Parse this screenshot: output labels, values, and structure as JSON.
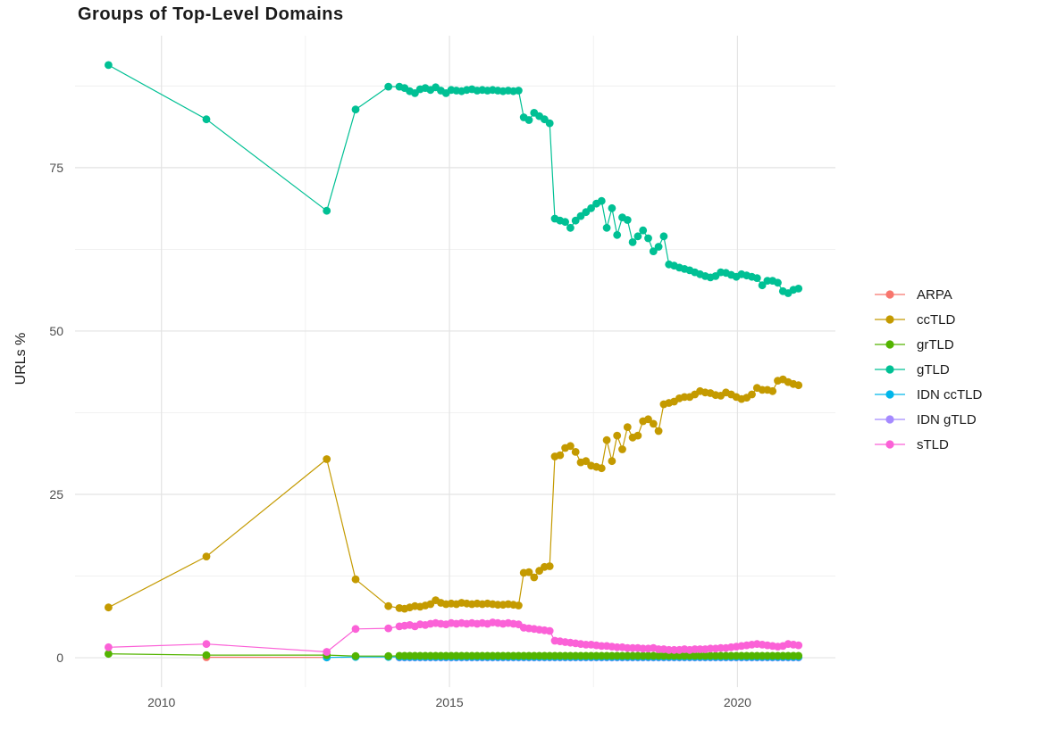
{
  "page": {
    "title": "Groups of Top-Level Domains"
  },
  "legend": {
    "position": "right",
    "items": [
      {
        "label": "ARPA",
        "color": "#F8766D"
      },
      {
        "label": "ccTLD",
        "color": "#C49A00"
      },
      {
        "label": "grTLD",
        "color": "#53B400"
      },
      {
        "label": "gTLD",
        "color": "#00C094"
      },
      {
        "label": "IDN ccTLD",
        "color": "#00B6EB"
      },
      {
        "label": "IDN gTLD",
        "color": "#A58AFF"
      },
      {
        "label": "sTLD",
        "color": "#FB61D7"
      }
    ]
  },
  "chart_data": {
    "type": "line",
    "title": "Groups of Top-Level Domains",
    "xlabel": "",
    "ylabel": "URLs %",
    "grid": true,
    "legend_position": "right",
    "xlim": [
      2008.5,
      2021.7
    ],
    "ylim": [
      -4.5,
      95.2
    ],
    "x_major_ticks": [
      2010,
      2015,
      2020
    ],
    "x_tick_labels": [
      "2010",
      "2015",
      "2020"
    ],
    "x_minor_gridlines": [
      2012.5,
      2017.5
    ],
    "y_major_ticks": [
      0,
      25,
      50,
      75
    ],
    "y_tick_labels": [
      "0",
      "25",
      "50",
      "75"
    ],
    "y_minor_gridlines": [
      12.5,
      37.5,
      62.5,
      87.5
    ],
    "colors": {
      "grid_major": "#e3e3e3",
      "grid_minor": "#efefef",
      "axis_text": "#4d4d4d"
    },
    "dense_x": {
      "start": 2014.13,
      "step": 0.09,
      "count": 78
    },
    "series": [
      {
        "name": "ARPA",
        "color": "#F8766D",
        "pre": [
          [
            2010.78,
            0.07
          ],
          [
            2012.87,
            0.05
          ]
        ]
      },
      {
        "name": "IDN gTLD",
        "color": "#A58AFF",
        "pre": [],
        "dense_const": 0.04
      },
      {
        "name": "IDN ccTLD",
        "color": "#00B6EB",
        "pre": [
          [
            2012.87,
            0.05
          ],
          [
            2013.37,
            0.12
          ],
          [
            2013.94,
            0.12
          ]
        ],
        "dense_const": 0.12
      },
      {
        "name": "grTLD",
        "color": "#53B400",
        "pre": [
          [
            2009.08,
            0.6
          ],
          [
            2010.78,
            0.4
          ],
          [
            2012.87,
            0.4
          ],
          [
            2013.37,
            0.25
          ],
          [
            2013.94,
            0.25
          ]
        ],
        "dense_const": 0.3
      },
      {
        "name": "ccTLD",
        "color": "#C49A00",
        "pre": [
          [
            2009.08,
            7.7
          ],
          [
            2010.78,
            15.5
          ],
          [
            2012.87,
            30.4
          ],
          [
            2013.37,
            12.0
          ],
          [
            2013.94,
            7.9
          ]
        ],
        "dense_y": [
          7.6,
          7.5,
          7.7,
          7.9,
          7.8,
          8.0,
          8.2,
          8.8,
          8.4,
          8.2,
          8.3,
          8.2,
          8.4,
          8.3,
          8.2,
          8.3,
          8.2,
          8.3,
          8.2,
          8.1,
          8.1,
          8.2,
          8.1,
          8.0,
          13.0,
          13.1,
          12.3,
          13.3,
          13.9,
          14.0,
          30.8,
          31.0,
          32.1,
          32.4,
          31.5,
          29.9,
          30.1,
          29.4,
          29.2,
          29.0,
          33.3,
          30.1,
          34.0,
          31.9,
          35.3,
          33.7,
          34.0,
          36.2,
          36.5,
          35.8,
          34.7,
          38.8,
          39.0,
          39.2,
          39.7,
          39.9,
          39.9,
          40.3,
          40.8,
          40.6,
          40.5,
          40.2,
          40.1,
          40.6,
          40.3,
          39.9,
          39.6,
          39.8,
          40.3,
          41.3,
          41.0,
          41.0,
          40.8,
          42.4,
          42.6,
          42.2,
          41.9,
          41.7
        ]
      },
      {
        "name": "gTLD",
        "color": "#00C094",
        "pre": [
          [
            2009.08,
            90.7
          ],
          [
            2010.78,
            82.4
          ],
          [
            2012.87,
            68.4
          ],
          [
            2013.37,
            83.9
          ],
          [
            2013.94,
            87.4
          ]
        ],
        "dense_y": [
          87.4,
          87.2,
          86.7,
          86.4,
          87.0,
          87.2,
          86.9,
          87.3,
          86.8,
          86.4,
          86.9,
          86.8,
          86.7,
          86.9,
          87.0,
          86.8,
          86.9,
          86.8,
          86.9,
          86.8,
          86.7,
          86.8,
          86.7,
          86.8,
          82.7,
          82.3,
          83.4,
          82.9,
          82.4,
          81.8,
          67.2,
          66.9,
          66.7,
          65.8,
          66.9,
          67.6,
          68.2,
          68.8,
          69.5,
          69.9,
          65.8,
          68.8,
          64.7,
          67.4,
          67.0,
          63.6,
          64.5,
          65.4,
          64.2,
          62.2,
          62.9,
          64.5,
          60.2,
          60.0,
          59.7,
          59.5,
          59.3,
          59.0,
          58.7,
          58.4,
          58.2,
          58.4,
          59.0,
          58.9,
          58.6,
          58.3,
          58.7,
          58.5,
          58.3,
          58.1,
          57.0,
          57.7,
          57.7,
          57.4,
          56.1,
          55.8,
          56.3,
          56.5
        ]
      },
      {
        "name": "sTLD",
        "color": "#FB61D7",
        "pre": [
          [
            2009.08,
            1.6
          ],
          [
            2010.78,
            2.1
          ],
          [
            2012.87,
            0.9
          ],
          [
            2013.37,
            4.4
          ],
          [
            2013.94,
            4.5
          ]
        ],
        "dense_y": [
          4.8,
          4.9,
          5.0,
          4.8,
          5.1,
          5.0,
          5.2,
          5.3,
          5.2,
          5.1,
          5.3,
          5.2,
          5.3,
          5.2,
          5.3,
          5.2,
          5.3,
          5.2,
          5.4,
          5.3,
          5.2,
          5.3,
          5.2,
          5.1,
          4.6,
          4.5,
          4.4,
          4.3,
          4.2,
          4.1,
          2.6,
          2.5,
          2.4,
          2.3,
          2.2,
          2.1,
          2.0,
          2.0,
          1.9,
          1.8,
          1.8,
          1.7,
          1.6,
          1.6,
          1.5,
          1.5,
          1.5,
          1.4,
          1.4,
          1.5,
          1.3,
          1.3,
          1.2,
          1.2,
          1.2,
          1.3,
          1.2,
          1.3,
          1.3,
          1.3,
          1.4,
          1.4,
          1.5,
          1.5,
          1.6,
          1.7,
          1.8,
          1.9,
          2.0,
          2.1,
          2.0,
          1.9,
          1.8,
          1.7,
          1.8,
          2.1,
          2.0,
          1.9
        ]
      }
    ]
  }
}
